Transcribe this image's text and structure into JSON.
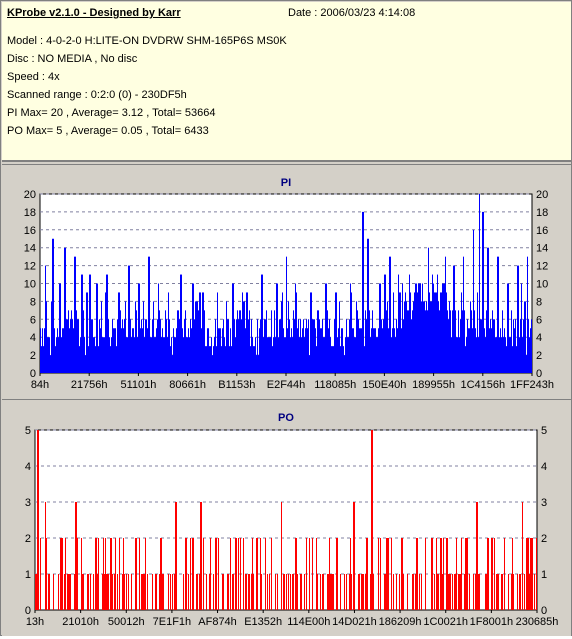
{
  "header": {
    "title": "KProbe v2.1.0 - Designed by Karr",
    "date": "Date : 2006/03/23 4:14:08",
    "model": "Model : 4-0-2-0 H:LITE-ON DVDRW SHM-165P6S MS0K",
    "disc": "Disc : NO MEDIA , No disc",
    "speed": "Speed : 4x",
    "scanned_range": "Scanned range : 0:2:0 (0) - 230DF5h",
    "pi_summary": "PI Max= 20 , Average= 3.12 , Total= 53664",
    "po_summary": "PO Max= 5 , Average= 0.05 , Total= 6433"
  },
  "colors": {
    "pi_bars": "#0000ff",
    "po_bars": "#ff0000",
    "plot_bg": "#ffffff",
    "grid": "#8080a0",
    "title_text": "#000080",
    "info_bg": "#ffffe1"
  },
  "chart_data": [
    {
      "type": "bar",
      "title": "PI",
      "ylim": [
        0,
        20
      ],
      "yticks": [
        0,
        2,
        4,
        6,
        8,
        10,
        12,
        14,
        16,
        18,
        20
      ],
      "xtick_labels": [
        "84h",
        "21756h",
        "51101h",
        "80661h",
        "B1153h",
        "E2F44h",
        "118085h",
        "150E40h",
        "189955h",
        "1C4156h",
        "1FF243h"
      ],
      "grid": "dashed horizontal",
      "baseline": [
        5,
        4,
        5,
        6,
        5,
        4,
        5,
        6,
        5,
        5,
        4,
        5,
        6,
        5,
        5,
        4,
        5,
        5,
        6,
        5,
        4,
        5,
        5,
        6,
        5,
        4,
        5,
        5,
        5,
        6,
        5,
        4,
        5,
        5,
        5,
        4,
        5,
        5,
        5,
        5,
        6,
        5,
        6,
        7,
        8,
        9,
        9,
        8,
        6,
        5,
        4,
        5,
        5,
        5,
        4,
        5,
        5,
        4
      ],
      "peaks": [
        [
          0.01,
          12
        ],
        [
          0.025,
          15
        ],
        [
          0.04,
          10
        ],
        [
          0.05,
          14
        ],
        [
          0.07,
          13
        ],
        [
          0.085,
          11
        ],
        [
          0.095,
          9
        ],
        [
          0.1,
          11
        ],
        [
          0.115,
          10
        ],
        [
          0.135,
          11
        ],
        [
          0.16,
          9
        ],
        [
          0.18,
          12
        ],
        [
          0.2,
          10
        ],
        [
          0.22,
          13
        ],
        [
          0.24,
          10
        ],
        [
          0.26,
          9
        ],
        [
          0.285,
          11
        ],
        [
          0.31,
          10
        ],
        [
          0.33,
          9
        ],
        [
          0.36,
          9
        ],
        [
          0.39,
          10
        ],
        [
          0.42,
          9
        ],
        [
          0.45,
          11
        ],
        [
          0.48,
          10
        ],
        [
          0.5,
          13
        ],
        [
          0.52,
          9
        ],
        [
          0.55,
          9
        ],
        [
          0.58,
          10
        ],
        [
          0.6,
          9
        ],
        [
          0.63,
          10
        ],
        [
          0.655,
          18
        ],
        [
          0.665,
          15
        ],
        [
          0.69,
          10
        ],
        [
          0.71,
          13
        ],
        [
          0.73,
          9
        ],
        [
          0.75,
          11
        ],
        [
          0.77,
          10
        ],
        [
          0.79,
          9
        ],
        [
          0.82,
          10
        ],
        [
          0.84,
          12
        ],
        [
          0.86,
          13
        ],
        [
          0.88,
          16
        ],
        [
          0.892,
          20
        ],
        [
          0.9,
          18
        ],
        [
          0.91,
          14
        ],
        [
          0.93,
          13
        ],
        [
          0.95,
          10
        ],
        [
          0.97,
          12
        ],
        [
          0.99,
          13
        ]
      ]
    },
    {
      "type": "bar",
      "title": "PO",
      "ylim": [
        0,
        5
      ],
      "yticks": [
        0,
        1,
        2,
        3,
        4,
        5
      ],
      "xtick_labels": [
        "13h",
        "21010h",
        "50012h",
        "7E1F1h",
        "AF874h",
        "E1352h",
        "114E00h",
        "14D021h",
        "186209h",
        "1C0021h",
        "1F8001h",
        "230685h"
      ],
      "grid": "dashed horizontal",
      "peaks": [
        [
          0.005,
          5
        ],
        [
          0.02,
          3
        ],
        [
          0.05,
          2
        ],
        [
          0.08,
          3
        ],
        [
          0.12,
          2
        ],
        [
          0.15,
          2
        ],
        [
          0.2,
          2
        ],
        [
          0.25,
          2
        ],
        [
          0.28,
          3
        ],
        [
          0.3,
          2
        ],
        [
          0.33,
          3
        ],
        [
          0.36,
          2
        ],
        [
          0.4,
          2
        ],
        [
          0.44,
          2
        ],
        [
          0.47,
          2
        ],
        [
          0.49,
          3
        ],
        [
          0.52,
          2
        ],
        [
          0.56,
          2
        ],
        [
          0.6,
          2
        ],
        [
          0.635,
          3
        ],
        [
          0.66,
          2
        ],
        [
          0.67,
          5
        ],
        [
          0.7,
          2
        ],
        [
          0.73,
          2
        ],
        [
          0.76,
          2
        ],
        [
          0.79,
          2
        ],
        [
          0.82,
          2
        ],
        [
          0.86,
          2
        ],
        [
          0.88,
          3
        ],
        [
          0.91,
          2
        ],
        [
          0.95,
          2
        ],
        [
          0.97,
          3
        ],
        [
          0.99,
          2
        ]
      ]
    }
  ]
}
